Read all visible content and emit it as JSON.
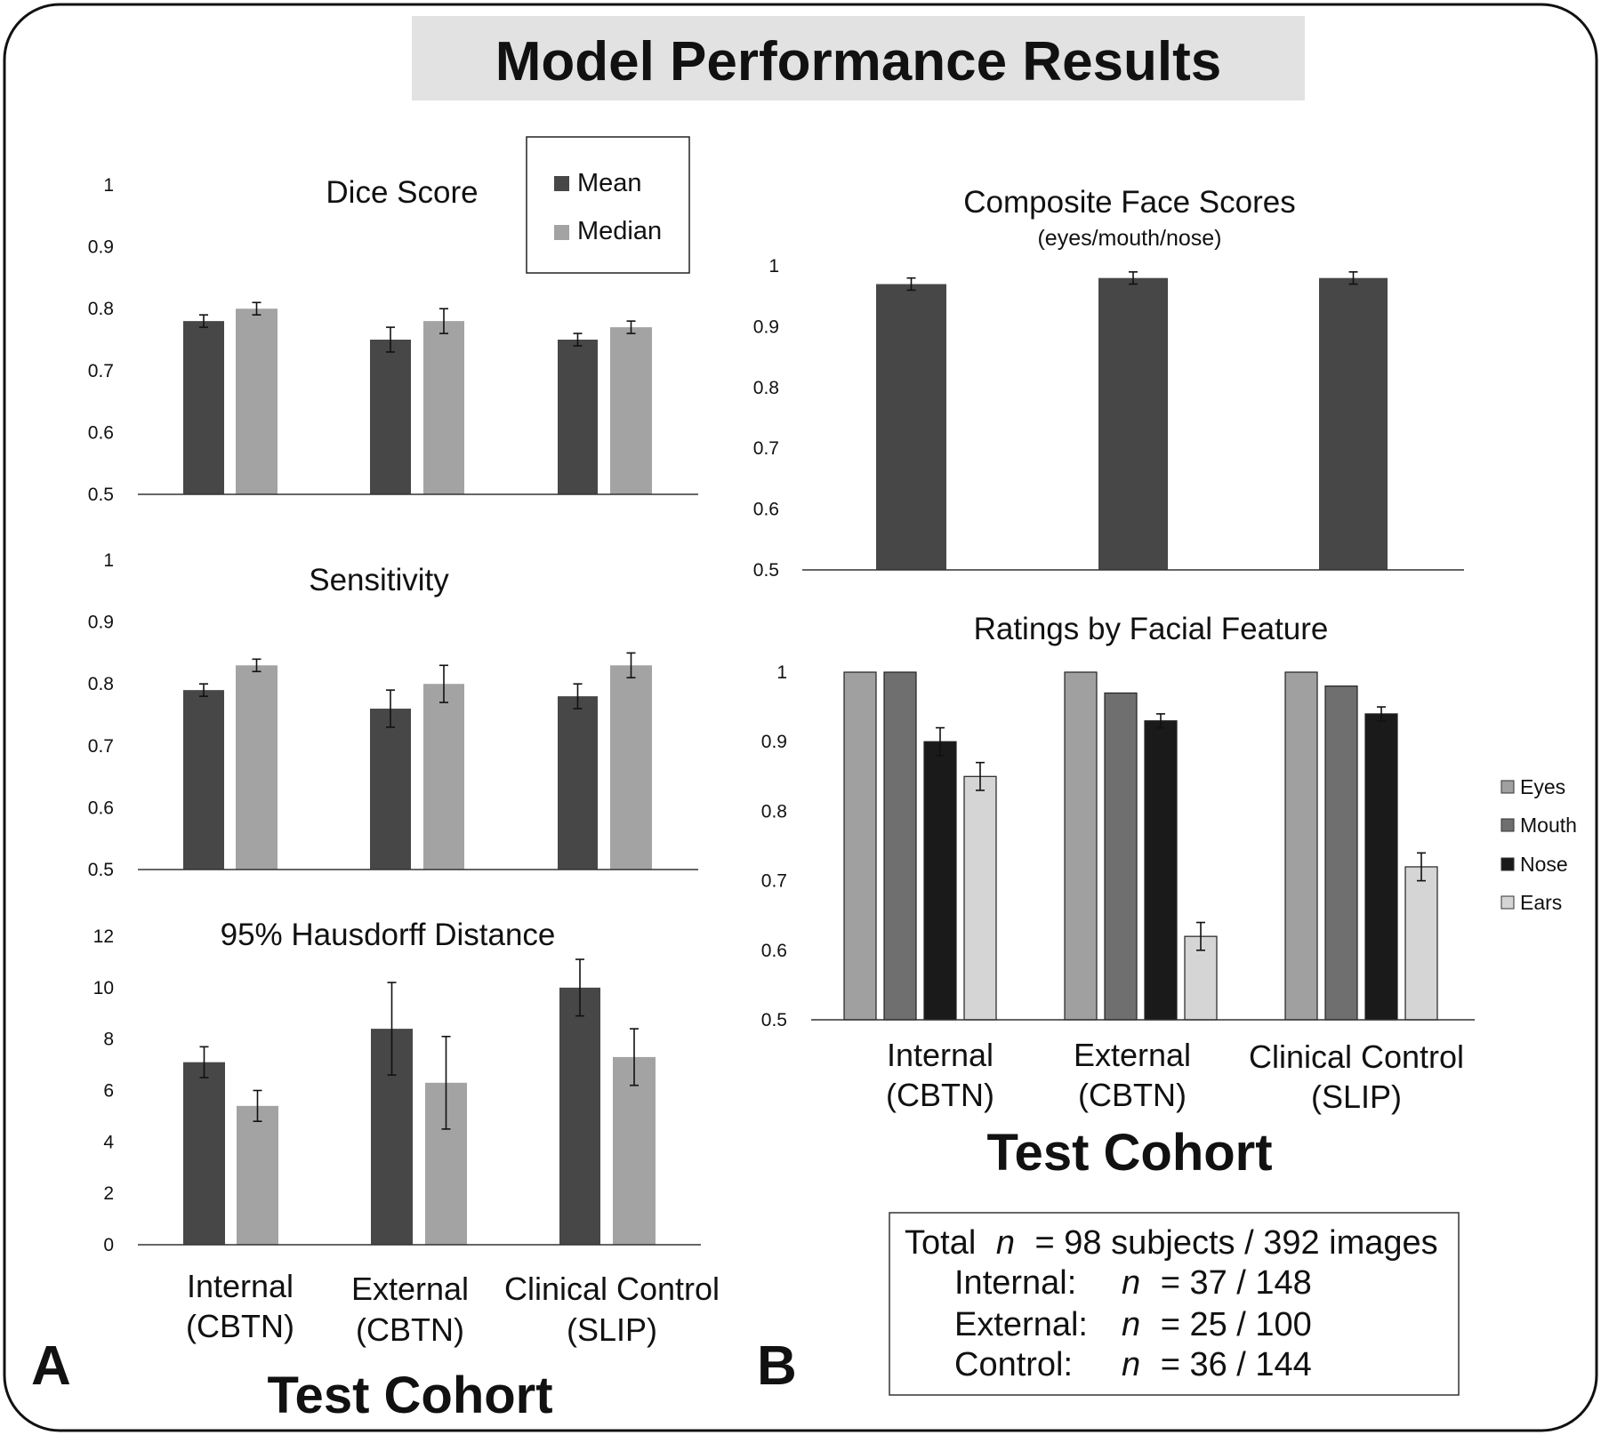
{
  "title": "Model Performance Results",
  "panel_labels": {
    "a": "A",
    "b": "B"
  },
  "x_axis_title": "Test Cohort",
  "categories_a": [
    {
      "line1": "Internal",
      "line2": "(CBTN)"
    },
    {
      "line1": "External",
      "line2": "(CBTN)"
    },
    {
      "line1": "Clinical Control",
      "line2": "(SLIP)"
    }
  ],
  "categories_b": [
    {
      "line1": "Internal",
      "line2": "(CBTN)"
    },
    {
      "line1": "External",
      "line2": "(CBTN)"
    },
    {
      "line1": "Clinical Control",
      "line2": "(SLIP)"
    }
  ],
  "legend_a": {
    "items": [
      {
        "label": "Mean",
        "color": "#474747"
      },
      {
        "label": "Median",
        "color": "#a3a3a3"
      }
    ]
  },
  "legend_b": {
    "items": [
      {
        "label": "Eyes",
        "color": "#a0a0a0"
      },
      {
        "label": "Mouth",
        "color": "#6f6f6f"
      },
      {
        "label": "Nose",
        "color": "#1a1a1a"
      },
      {
        "label": "Ears",
        "color": "#d5d5d5"
      }
    ]
  },
  "summary_box": {
    "total_prefix": "Total",
    "total_n": "n",
    "total_rest": "= 98 subjects / 392 images",
    "rows": [
      {
        "label": "Internal:",
        "n": "n",
        "value": "= 37 / 148"
      },
      {
        "label": "External:",
        "n": "n",
        "value": "= 25 / 100"
      },
      {
        "label": "Control:",
        "n": "n",
        "value": "= 36 / 144"
      }
    ]
  },
  "chart_data": [
    {
      "id": "dice",
      "type": "bar",
      "title": "Dice Score",
      "categories": [
        "Internal (CBTN)",
        "External (CBTN)",
        "Clinical Control (SLIP)"
      ],
      "ylim": [
        0.5,
        1
      ],
      "yticks": [
        "0.5",
        "0.6",
        "0.7",
        "0.8",
        "0.9",
        "1"
      ],
      "series": [
        {
          "name": "Mean",
          "color": "#474747",
          "values": [
            0.78,
            0.75,
            0.75
          ],
          "errors": [
            0.01,
            0.02,
            0.01
          ]
        },
        {
          "name": "Median",
          "color": "#a3a3a3",
          "values": [
            0.8,
            0.78,
            0.77
          ],
          "errors": [
            0.01,
            0.02,
            0.01
          ]
        }
      ],
      "legend": "top-right"
    },
    {
      "id": "sensitivity",
      "type": "bar",
      "title": "Sensitivity",
      "categories": [
        "Internal (CBTN)",
        "External (CBTN)",
        "Clinical Control (SLIP)"
      ],
      "ylim": [
        0.5,
        1
      ],
      "yticks": [
        "0.5",
        "0.6",
        "0.7",
        "0.8",
        "0.9",
        "1"
      ],
      "series": [
        {
          "name": "Mean",
          "color": "#474747",
          "values": [
            0.79,
            0.76,
            0.78
          ],
          "errors": [
            0.01,
            0.03,
            0.02
          ]
        },
        {
          "name": "Median",
          "color": "#a3a3a3",
          "values": [
            0.83,
            0.8,
            0.83
          ],
          "errors": [
            0.01,
            0.03,
            0.02
          ]
        }
      ]
    },
    {
      "id": "hausdorff",
      "type": "bar",
      "title": "95% Hausdorff Distance",
      "categories": [
        "Internal (CBTN)",
        "External (CBTN)",
        "Clinical Control (SLIP)"
      ],
      "ylim": [
        0,
        12
      ],
      "yticks": [
        "0",
        "2",
        "4",
        "6",
        "8",
        "10",
        "12"
      ],
      "series": [
        {
          "name": "Mean",
          "color": "#474747",
          "values": [
            7.1,
            8.4,
            10.0
          ],
          "errors": [
            0.6,
            1.8,
            1.1
          ]
        },
        {
          "name": "Median",
          "color": "#a3a3a3",
          "values": [
            5.4,
            6.3,
            7.3
          ],
          "errors": [
            0.6,
            1.8,
            1.1
          ]
        }
      ]
    },
    {
      "id": "composite",
      "type": "bar",
      "title": "Composite Face Scores",
      "subtitle": "(eyes/mouth/nose)",
      "categories": [
        "Internal (CBTN)",
        "External (CBTN)",
        "Clinical Control (SLIP)"
      ],
      "ylim": [
        0.5,
        1
      ],
      "yticks": [
        "0.5",
        "0.6",
        "0.7",
        "0.8",
        "0.9",
        "1"
      ],
      "series": [
        {
          "name": "",
          "color": "#474747",
          "values": [
            0.97,
            0.98,
            0.98
          ],
          "errors": [
            0.01,
            0.01,
            0.01
          ]
        }
      ]
    },
    {
      "id": "feature",
      "type": "bar",
      "title": "Ratings by Facial Feature",
      "categories": [
        "Internal (CBTN)",
        "External (CBTN)",
        "Clinical Control (SLIP)"
      ],
      "ylim": [
        0.5,
        1
      ],
      "yticks": [
        "0.5",
        "0.6",
        "0.7",
        "0.8",
        "0.9",
        "1"
      ],
      "series": [
        {
          "name": "Eyes",
          "color": "#a0a0a0",
          "values": [
            1.0,
            1.0,
            1.0
          ],
          "errors": [
            0,
            0,
            0
          ]
        },
        {
          "name": "Mouth",
          "color": "#6f6f6f",
          "values": [
            1.0,
            0.97,
            0.98
          ],
          "errors": [
            0,
            0,
            0
          ]
        },
        {
          "name": "Nose",
          "color": "#1a1a1a",
          "values": [
            0.9,
            0.93,
            0.94
          ],
          "errors": [
            0.02,
            0.01,
            0.01
          ]
        },
        {
          "name": "Ears",
          "color": "#d5d5d5",
          "values": [
            0.85,
            0.62,
            0.72
          ],
          "errors": [
            0.02,
            0.02,
            0.02
          ]
        }
      ],
      "legend": "right"
    }
  ]
}
